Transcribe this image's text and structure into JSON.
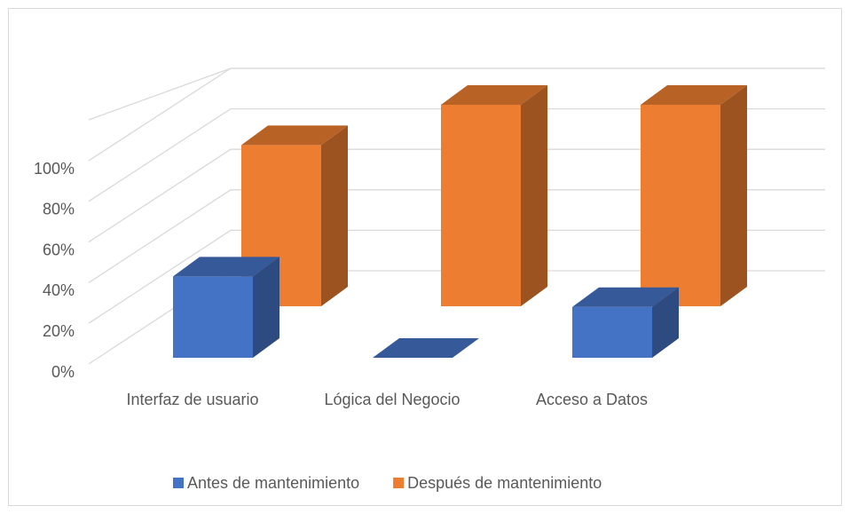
{
  "chart_data": {
    "type": "bar3d",
    "categories": [
      "Interfaz de usuario",
      "Lógica del Negocio",
      "Acceso a Datos"
    ],
    "series": [
      {
        "name": "Antes de mantenimiento",
        "color": "#4472c4",
        "values": [
          40,
          0,
          25
        ]
      },
      {
        "name": "Después de mantenimiento",
        "color": "#ed7d31",
        "values": [
          80,
          100,
          100
        ]
      }
    ],
    "ylim": [
      0,
      100
    ],
    "yticks": [
      {
        "value": 0,
        "label": "0%"
      },
      {
        "value": 20,
        "label": "20%"
      },
      {
        "value": 40,
        "label": "40%"
      },
      {
        "value": 60,
        "label": "60%"
      },
      {
        "value": 80,
        "label": "80%"
      },
      {
        "value": 100,
        "label": "100%"
      }
    ],
    "grid": true,
    "legend": "bottom"
  }
}
